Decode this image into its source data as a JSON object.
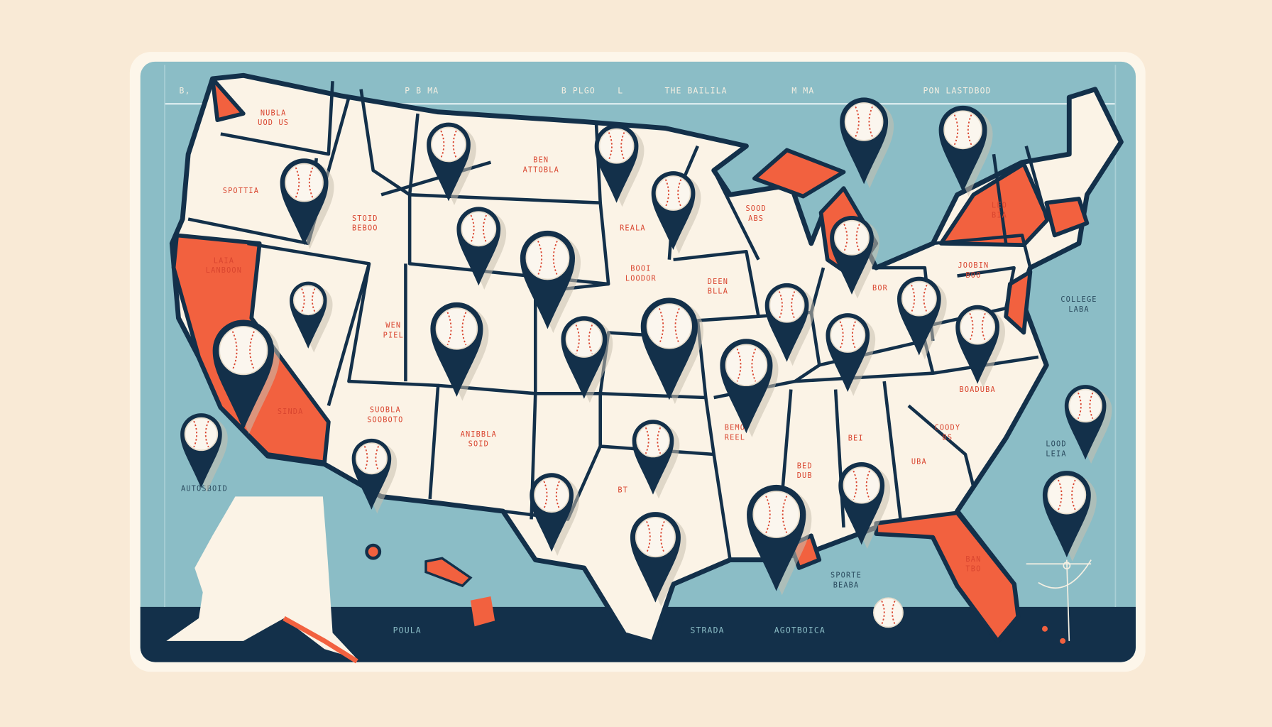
{
  "colors": {
    "background": "#f9ead6",
    "sea": "#8bbdc6",
    "land": "#fbf3e6",
    "outline": "#13304a",
    "highlight": "#f2613f",
    "stitch": "#d9452f"
  },
  "header_labels": [
    "B,",
    "P  B MA",
    "B PLGO",
    "L",
    "THE BAILILA",
    "M MA",
    "PON LASTDBOD"
  ],
  "map_labels": [
    [
      "NUBLA",
      "UOD US"
    ],
    [
      "SPOTTIA"
    ],
    [
      "STOID",
      "BEBOO"
    ],
    [
      "BEN",
      "ATTOBLA"
    ],
    [
      "REALA"
    ],
    [
      "LAIA",
      "LANBOON"
    ],
    [
      "WEN",
      "PIEL"
    ],
    [
      "BOOI",
      "LOODOR"
    ],
    [
      "DEEN",
      "BLLA"
    ],
    [
      "SOOD",
      "ABS"
    ],
    [
      "LEO",
      "BIA"
    ],
    [
      "JOOBIN",
      "BOO"
    ],
    [
      "BOR"
    ],
    [
      "COLLEGE",
      "LABA"
    ],
    [
      "SINDA"
    ],
    [
      "SUOBLA",
      "SOOBOTO"
    ],
    [
      "ANIBBLA",
      "SOID"
    ],
    [
      "BT"
    ],
    [
      "BEMO",
      "REEL"
    ],
    [
      "BED",
      "DUB"
    ],
    [
      "BEI"
    ],
    [
      "UBA"
    ],
    [
      "COODY",
      "BS"
    ],
    [
      "BOADUBA"
    ],
    [
      "LOOD",
      "LEIA"
    ],
    [
      "AUTOSBOID"
    ],
    [
      "SPORTE",
      "BEABA"
    ],
    [
      "BAN",
      "TBO"
    ]
  ],
  "bottom_labels": [
    "POULA",
    "STRADA",
    "AGOTBOICA"
  ],
  "marker_icon": "baseball-pin-icon",
  "marker_count": 28
}
